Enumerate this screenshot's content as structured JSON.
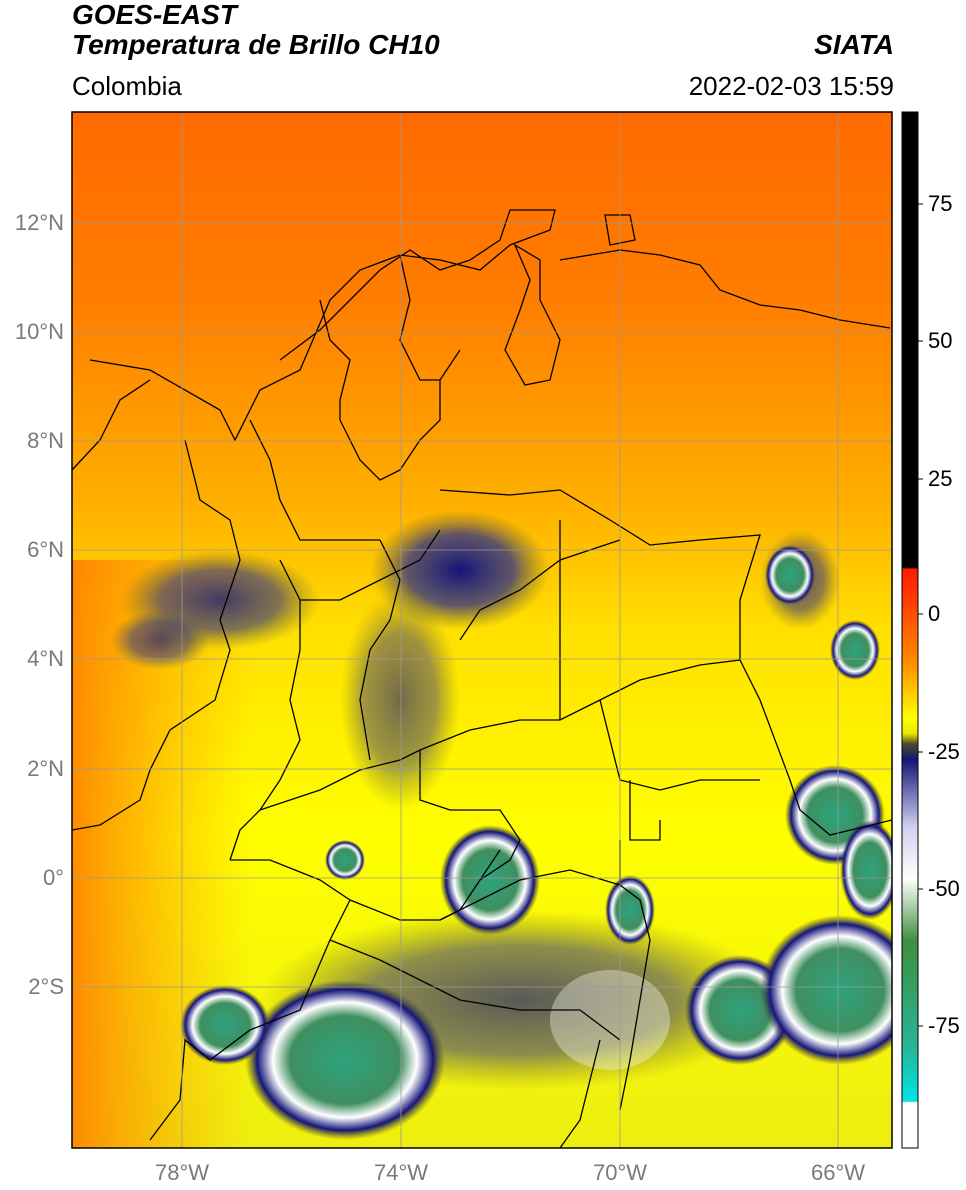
{
  "header": {
    "title_line1": "GOES-EAST",
    "title_line2": "Temperatura de Brillo CH10",
    "brand": "SIATA",
    "region": "Colombia",
    "datetime": "2022-02-03 15:59"
  },
  "axes": {
    "lat_labels": [
      "12°N",
      "10°N",
      "8°N",
      "6°N",
      "4°N",
      "2°N",
      "0°",
      "2°S"
    ],
    "lon_labels": [
      "78°W",
      "74°W",
      "70°W",
      "66°W"
    ]
  },
  "colorbar": {
    "tick_labels": [
      "75",
      "50",
      "25",
      "0",
      "-25",
      "-50",
      "-75"
    ],
    "colors": {
      "black": "#000000",
      "red": "#ff2200",
      "orange": "#ff7a00",
      "yellow": "#ffff00",
      "olive": "#4a4a28",
      "navy": "#15157a",
      "white": "#ffffff",
      "green": "#3f8f5f",
      "teal": "#2ab394",
      "cyan": "#00e5e5"
    }
  }
}
